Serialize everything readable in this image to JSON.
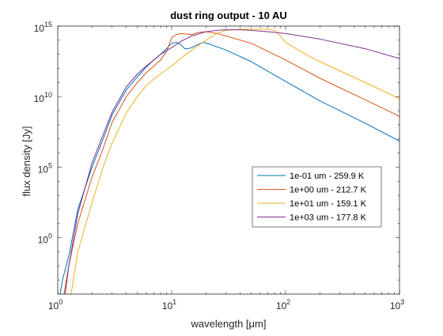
{
  "chart_data": {
    "type": "line",
    "title": "dust ring output - 10 AU",
    "xlabel": "wavelength [μm]",
    "ylabel": "flux density [Jy]",
    "xscale": "log",
    "yscale": "log",
    "xlim": [
      1,
      1000
    ],
    "ylim": [
      0.0001,
      1000000000000000.0
    ],
    "x_ticks": [
      {
        "value": 1,
        "base": "10",
        "exp": "0"
      },
      {
        "value": 10,
        "base": "10",
        "exp": "1"
      },
      {
        "value": 100,
        "base": "10",
        "exp": "2"
      },
      {
        "value": 1000,
        "base": "10",
        "exp": "3"
      }
    ],
    "y_ticks": [
      {
        "value": 1,
        "base": "10",
        "exp": "0"
      },
      {
        "value": 100000,
        "base": "10",
        "exp": "5"
      },
      {
        "value": 10000000000.0,
        "base": "10",
        "exp": "10"
      },
      {
        "value": 1000000000000000.0,
        "base": "10",
        "exp": "15"
      }
    ],
    "grid": false,
    "legend_position": "lower-right",
    "series": [
      {
        "name": "1e-01 um - 259.9 K",
        "color": "#0072BD",
        "x": [
          1.0,
          1.1,
          1.25,
          1.5,
          2,
          2.5,
          3,
          4,
          5,
          6,
          7,
          8,
          9,
          10,
          11,
          12,
          13,
          14,
          15,
          17,
          19,
          22,
          30,
          50,
          100,
          200,
          500,
          1000
        ],
        "y": [
          1e-05,
          0.001,
          0.05,
          100.0,
          100000.0,
          10000000.0,
          500000000.0,
          30000000000.0,
          250000000000.0,
          1300000000000.0,
          4000000000000.0,
          10000000000000.0,
          25000000000000.0,
          60000000000000.0,
          70000000000000.0,
          50000000000000.0,
          25000000000000.0,
          25000000000000.0,
          30000000000000.0,
          50000000000000.0,
          70000000000000.0,
          50000000000000.0,
          20000000000000.0,
          3000000000000.0,
          120000000000.0,
          5000000000.0,
          130000000.0,
          7000000.0
        ]
      },
      {
        "name": "1e+00 um - 212.7 K",
        "color": "#D95319",
        "x": [
          1.08,
          1.25,
          1.5,
          2,
          2.5,
          3,
          4,
          5,
          6,
          7,
          8,
          9,
          10,
          11,
          12,
          13,
          15,
          17,
          20,
          25,
          30,
          50,
          100,
          200,
          500,
          1000
        ],
        "y": [
          1e-05,
          0.01,
          10,
          20000.0,
          2000000.0,
          150000000.0,
          10000000000.0,
          100000000000.0,
          500000000000.0,
          1500000000000.0,
          4000000000000.0,
          15000000000000.0,
          150000000000000.0,
          250000000000000.0,
          300000000000000.0,
          280000000000000.0,
          250000000000000.0,
          350000000000000.0,
          400000000000000.0,
          300000000000000.0,
          200000000000000.0,
          60000000000000.0,
          4000000000000.0,
          200000000000.0,
          6000000000.0,
          400000000.0
        ]
      },
      {
        "name": "1e+01 um - 159.1 K",
        "color": "#EDB120",
        "x": [
          1.25,
          1.5,
          2,
          2.5,
          3,
          4,
          5,
          6,
          7,
          8,
          9,
          10,
          12,
          15,
          20,
          25,
          30,
          40,
          50,
          60,
          70,
          80,
          90,
          100,
          150,
          200,
          500,
          1000
        ],
        "y": [
          1e-05,
          0.1,
          300.0,
          100000.0,
          5000000.0,
          700000000.0,
          10000000000.0,
          60000000000.0,
          180000000000.0,
          400000000000.0,
          800000000000.0,
          1500000000000.0,
          5000000000000.0,
          20000000000000.0,
          100000000000000.0,
          300000000000000.0,
          500000000000000.0,
          600000000000000.0,
          600000000000000.0,
          600000000000000.0,
          600000000000000.0,
          500000000000000.0,
          200000000000000.0,
          70000000000000.0,
          10000000000000.0,
          3000000000000.0,
          100000000000.0,
          7000000000.0
        ]
      },
      {
        "name": "1e+03 um - 177.8 K",
        "color": "#7E2F8E",
        "x": [
          1.12,
          1.25,
          1.5,
          2,
          2.5,
          3,
          4,
          5,
          6,
          7,
          8,
          10,
          12,
          15,
          20,
          25,
          30,
          40,
          50,
          70,
          100,
          200,
          500,
          1000
        ],
        "y": [
          1e-05,
          0.01,
          50,
          200000.0,
          20000000.0,
          800000000.0,
          50000000000.0,
          400000000000.0,
          1500000000000.0,
          4000000000000.0,
          10000000000000.0,
          30000000000000.0,
          80000000000000.0,
          200000000000000.0,
          400000000000000.0,
          500000000000000.0,
          550000000000000.0,
          550000000000000.0,
          500000000000000.0,
          400000000000000.0,
          300000000000000.0,
          120000000000000.0,
          25000000000000.0,
          5000000000000.0
        ]
      }
    ]
  }
}
